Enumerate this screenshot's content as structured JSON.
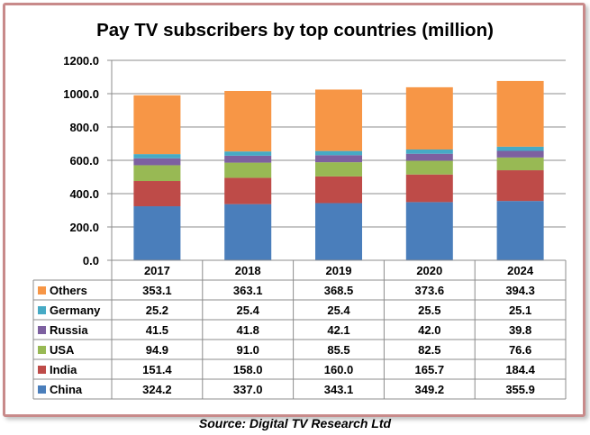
{
  "title": "Pay TV subscribers by top countries (million)",
  "source": "Source: Digital TV Research Ltd",
  "chart_data": {
    "type": "bar",
    "stacked": true,
    "title": "Pay TV subscribers by top countries (million)",
    "categories": [
      "2017",
      "2018",
      "2019",
      "2020",
      "2024"
    ],
    "yticks": [
      "0.0",
      "200.0",
      "400.0",
      "600.0",
      "800.0",
      "1000.0",
      "1200.0"
    ],
    "ylim": [
      0,
      1200
    ],
    "grid": true,
    "legend": "data-table",
    "series": [
      {
        "name": "China",
        "color": "#4a7ebb",
        "values": [
          324.2,
          337.0,
          343.1,
          349.2,
          355.9
        ],
        "labels": [
          "324.2",
          "337.0",
          "343.1",
          "349.2",
          "355.9"
        ]
      },
      {
        "name": "India",
        "color": "#be4b48",
        "values": [
          151.4,
          158.0,
          160.0,
          165.7,
          184.4
        ],
        "labels": [
          "151.4",
          "158.0",
          "160.0",
          "165.7",
          "184.4"
        ]
      },
      {
        "name": "USA",
        "color": "#98b954",
        "values": [
          94.9,
          91.0,
          85.5,
          82.5,
          76.6
        ],
        "labels": [
          "94.9",
          "91.0",
          "85.5",
          "82.5",
          "76.6"
        ]
      },
      {
        "name": "Russia",
        "color": "#7d60a0",
        "values": [
          41.5,
          41.8,
          42.1,
          42.0,
          39.8
        ],
        "labels": [
          "41.5",
          "41.8",
          "42.1",
          "42.0",
          "39.8"
        ]
      },
      {
        "name": "Germany",
        "color": "#46aac5",
        "values": [
          25.2,
          25.4,
          25.4,
          25.5,
          25.1
        ],
        "labels": [
          "25.2",
          "25.4",
          "25.4",
          "25.5",
          "25.1"
        ]
      },
      {
        "name": "Others",
        "color": "#f79646",
        "values": [
          353.1,
          363.1,
          368.5,
          373.6,
          394.3
        ],
        "labels": [
          "353.1",
          "363.1",
          "368.5",
          "373.6",
          "394.3"
        ]
      }
    ]
  }
}
